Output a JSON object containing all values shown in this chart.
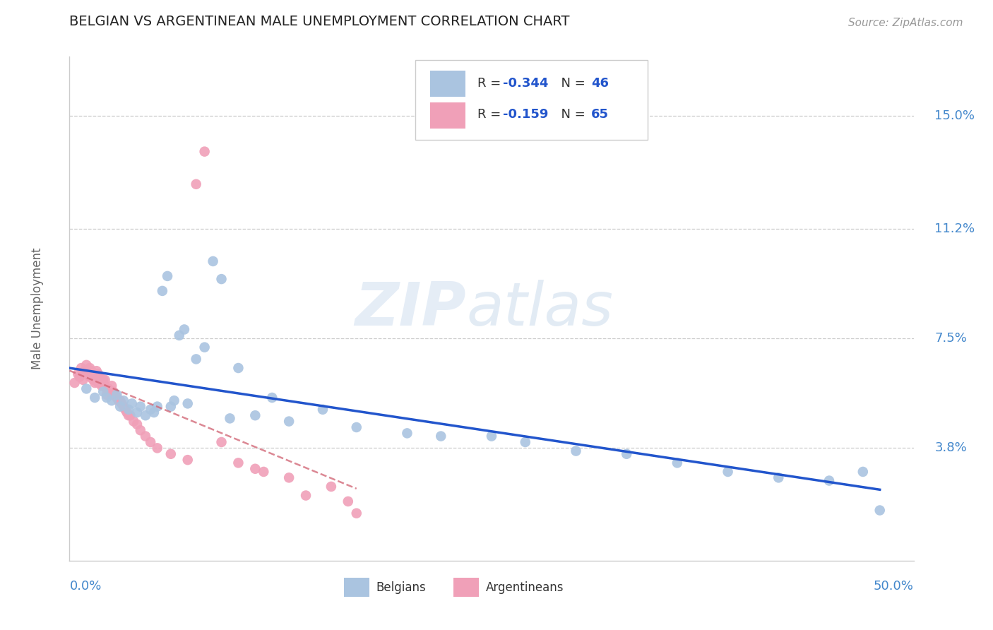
{
  "title": "BELGIAN VS ARGENTINEAN MALE UNEMPLOYMENT CORRELATION CHART",
  "source": "Source: ZipAtlas.com",
  "ylabel": "Male Unemployment",
  "ytick_values": [
    0.15,
    0.112,
    0.075,
    0.038
  ],
  "ytick_labels": [
    "15.0%",
    "11.2%",
    "7.5%",
    "3.8%"
  ],
  "xlim": [
    0.0,
    0.5
  ],
  "ylim": [
    0.0,
    0.17
  ],
  "belgian_R": "-0.344",
  "belgian_N": "46",
  "argentinean_R": "-0.159",
  "argentinean_N": "65",
  "belgian_color": "#aac4e0",
  "argentinean_color": "#f0a0b8",
  "trend_belgian_color": "#2255cc",
  "trend_argentinean_color": "#d06070",
  "watermark_zip": "ZIP",
  "watermark_atlas": "atlas",
  "belgians_x": [
    0.01,
    0.015,
    0.02,
    0.022,
    0.025,
    0.028,
    0.03,
    0.032,
    0.035,
    0.037,
    0.04,
    0.042,
    0.045,
    0.048,
    0.05,
    0.052,
    0.055,
    0.058,
    0.06,
    0.062,
    0.065,
    0.068,
    0.07,
    0.075,
    0.08,
    0.085,
    0.09,
    0.095,
    0.1,
    0.11,
    0.12,
    0.13,
    0.15,
    0.17,
    0.2,
    0.22,
    0.25,
    0.27,
    0.3,
    0.33,
    0.36,
    0.39,
    0.42,
    0.45,
    0.47,
    0.48
  ],
  "belgians_y": [
    0.058,
    0.055,
    0.057,
    0.055,
    0.054,
    0.056,
    0.052,
    0.054,
    0.051,
    0.053,
    0.05,
    0.052,
    0.049,
    0.051,
    0.05,
    0.052,
    0.091,
    0.096,
    0.052,
    0.054,
    0.076,
    0.078,
    0.053,
    0.068,
    0.072,
    0.101,
    0.095,
    0.048,
    0.065,
    0.049,
    0.055,
    0.047,
    0.051,
    0.045,
    0.043,
    0.042,
    0.042,
    0.04,
    0.037,
    0.036,
    0.033,
    0.03,
    0.028,
    0.027,
    0.03,
    0.017
  ],
  "argentineans_x": [
    0.003,
    0.005,
    0.006,
    0.007,
    0.008,
    0.009,
    0.01,
    0.01,
    0.011,
    0.012,
    0.012,
    0.013,
    0.013,
    0.014,
    0.014,
    0.015,
    0.015,
    0.016,
    0.016,
    0.017,
    0.017,
    0.018,
    0.018,
    0.019,
    0.019,
    0.02,
    0.02,
    0.021,
    0.021,
    0.022,
    0.022,
    0.023,
    0.024,
    0.025,
    0.025,
    0.026,
    0.027,
    0.028,
    0.029,
    0.03,
    0.031,
    0.032,
    0.033,
    0.034,
    0.035,
    0.036,
    0.038,
    0.04,
    0.042,
    0.045,
    0.048,
    0.052,
    0.06,
    0.07,
    0.075,
    0.08,
    0.09,
    0.1,
    0.11,
    0.115,
    0.13,
    0.14,
    0.155,
    0.165,
    0.17
  ],
  "argentineans_y": [
    0.06,
    0.063,
    0.062,
    0.065,
    0.061,
    0.064,
    0.063,
    0.066,
    0.063,
    0.065,
    0.062,
    0.064,
    0.062,
    0.063,
    0.061,
    0.063,
    0.06,
    0.064,
    0.061,
    0.063,
    0.06,
    0.062,
    0.06,
    0.061,
    0.059,
    0.061,
    0.059,
    0.061,
    0.059,
    0.058,
    0.056,
    0.058,
    0.057,
    0.056,
    0.059,
    0.057,
    0.056,
    0.055,
    0.054,
    0.054,
    0.053,
    0.052,
    0.051,
    0.05,
    0.049,
    0.049,
    0.047,
    0.046,
    0.044,
    0.042,
    0.04,
    0.038,
    0.036,
    0.034,
    0.127,
    0.138,
    0.04,
    0.033,
    0.031,
    0.03,
    0.028,
    0.022,
    0.025,
    0.02,
    0.016
  ]
}
